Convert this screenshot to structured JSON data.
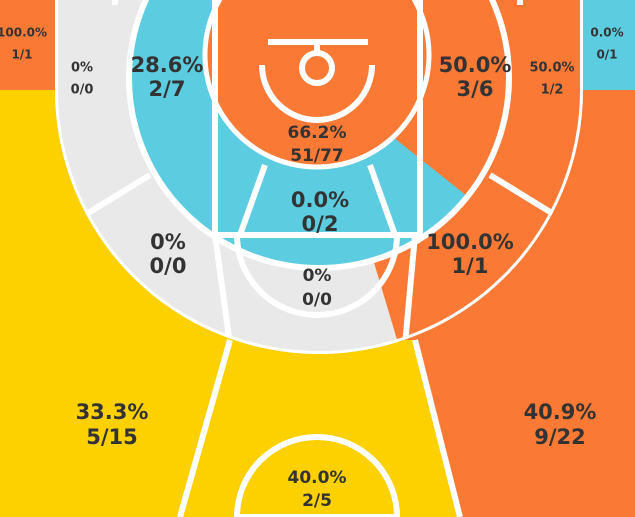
{
  "zones": [
    {
      "pct": "100.0%",
      "ratio": "1/1"
    },
    {
      "pct": "0.0%",
      "ratio": "0/1"
    },
    {
      "pct": "0%",
      "ratio": "0/0"
    },
    {
      "pct": "28.6%",
      "ratio": "2/7"
    },
    {
      "pct": "66.2%",
      "ratio": "51/77"
    },
    {
      "pct": "50.0%",
      "ratio": "3/6"
    },
    {
      "pct": "50.0%",
      "ratio": "1/2"
    },
    {
      "pct": "0.0%",
      "ratio": "0/2"
    },
    {
      "pct": "0%",
      "ratio": "0/0"
    },
    {
      "pct": "100.0%",
      "ratio": "1/1"
    },
    {
      "pct": "0%",
      "ratio": "0/0"
    },
    {
      "pct": "33.3%",
      "ratio": "5/15"
    },
    {
      "pct": "40.9%",
      "ratio": "9/22"
    },
    {
      "pct": "40.0%",
      "ratio": "2/5"
    }
  ]
}
